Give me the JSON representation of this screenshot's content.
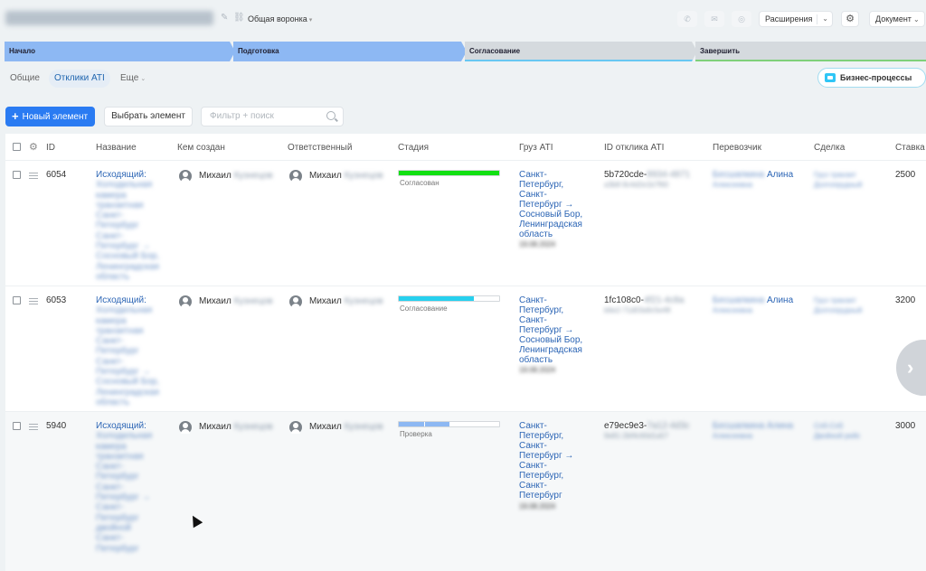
{
  "header": {
    "funnel": "Общая воронка",
    "extensions": "Расширения",
    "document": "Документ"
  },
  "stages": [
    {
      "label": "Начало",
      "state": "done"
    },
    {
      "label": "Подготовка",
      "state": "done"
    },
    {
      "label": "Согласование",
      "state": "current"
    },
    {
      "label": "Завершить",
      "state": "finish"
    }
  ],
  "tabs": {
    "general": "Общие",
    "ati": "Отклики ATI",
    "more": "Еще"
  },
  "business_processes": "Бизнес-процессы",
  "toolbar": {
    "new_element": "Новый элемент",
    "select_element": "Выбрать элемент",
    "filter_placeholder": "Фильтр + поиск"
  },
  "columns": {
    "id": "ID",
    "name": "Название",
    "created_by": "Кем создан",
    "responsible": "Ответственный",
    "stage": "Стадия",
    "cargo": "Груз ATI",
    "ati_id": "ID отклика ATI",
    "carrier": "Перевозчик",
    "deal": "Сделка",
    "rate": "Ставка"
  },
  "rows": [
    {
      "id": "6054",
      "name": "Исходящий:",
      "created_by": "Михаил",
      "responsible": "Михаил",
      "stage_label": "Согласован",
      "stage_color": "#12e012",
      "stage_fill": 1.0,
      "cargo": [
        "Санкт-",
        "Петербург,",
        "Санкт-",
        "Петербург →",
        "Сосновый Бор,",
        "Ленинградская",
        "область"
      ],
      "ati_id": "5b720cde-",
      "carrier": "Алина",
      "rate": "2500"
    },
    {
      "id": "6053",
      "name": "Исходящий:",
      "created_by": "Михаил",
      "responsible": "Михаил",
      "stage_label": "Согласование",
      "stage_color": "#27d0ee",
      "stage_fill": 0.75,
      "cargo": [
        "Санкт-",
        "Петербург,",
        "Санкт-",
        "Петербург →",
        "Сосновый Бор,",
        "Ленинградская",
        "область"
      ],
      "ati_id": "1fc108c0-",
      "carrier": "Алина",
      "rate": "3200"
    },
    {
      "id": "5940",
      "name": "Исходящий:",
      "created_by": "Михаил",
      "responsible": "Михаил",
      "stage_label": "Проверка",
      "stage_color": "#8db8f3",
      "stage_fill": 0.5,
      "cargo": [
        "Санкт-",
        "Петербург,",
        "Санкт-",
        "Петербург →",
        "Санкт-",
        "Петербург,",
        "Санкт-",
        "Петербург"
      ],
      "ati_id": "e79ec9e3-",
      "carrier": "",
      "rate": "3000"
    }
  ]
}
